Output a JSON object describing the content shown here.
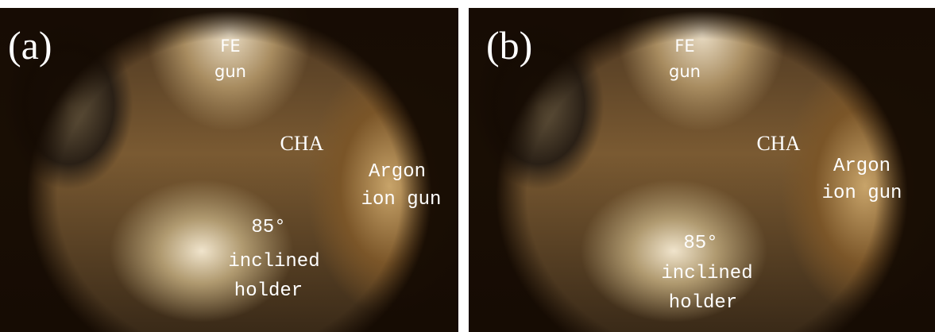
{
  "panels": [
    {
      "label": "(a)",
      "fe_gun": [
        "FE",
        "gun"
      ],
      "cha": "CHA",
      "argon": [
        "Argon",
        "ion gun"
      ],
      "holder": [
        "85°",
        "inclined",
        "holder"
      ]
    },
    {
      "label": "(b)",
      "fe_gun": [
        "FE",
        "gun"
      ],
      "cha": "CHA",
      "argon": [
        "Argon",
        "ion gun"
      ],
      "holder": [
        "85°",
        "inclined",
        "holder"
      ]
    }
  ]
}
